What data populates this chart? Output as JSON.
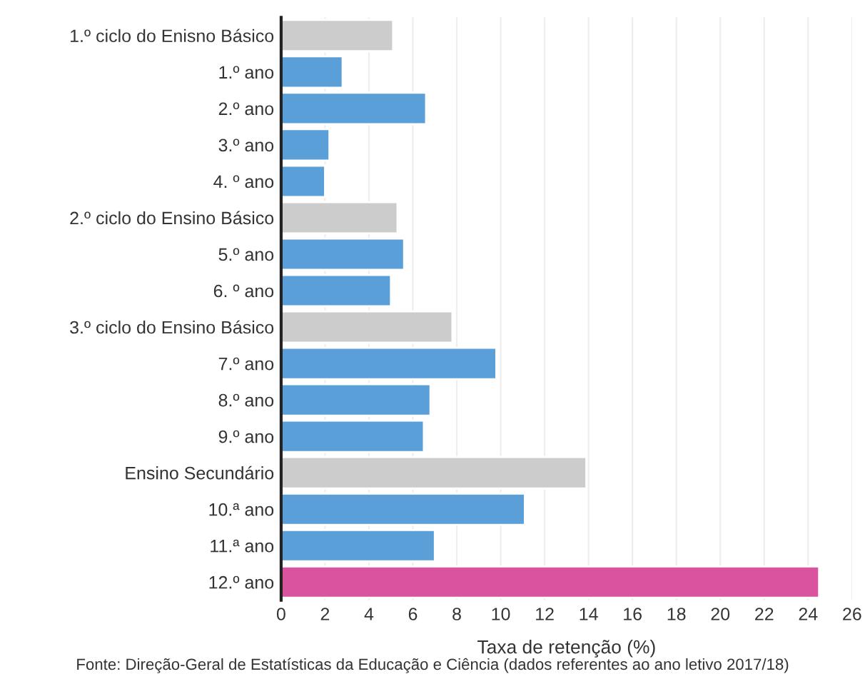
{
  "chart_data": {
    "type": "bar",
    "orientation": "horizontal",
    "categories": [
      "1.º ciclo do Enisno Básico",
      "1.º ano",
      "2.º ano",
      "3.º ano",
      "4. º ano",
      "2.º ciclo do Ensino Básico",
      "5.º ano",
      "6. º ano",
      "3.º ciclo do Ensino Básico",
      "7.º ano",
      "8.º ano",
      "9.º ano",
      "Ensino Secundário",
      "10.ª ano",
      "11.ª ano",
      "12.º ano"
    ],
    "values": [
      5.1,
      2.8,
      6.6,
      2.2,
      2.0,
      5.3,
      5.6,
      5.0,
      7.8,
      9.8,
      6.8,
      6.5,
      13.9,
      11.1,
      7.0,
      24.5
    ],
    "colors": [
      "#cccccc",
      "#5a9fd8",
      "#5a9fd8",
      "#5a9fd8",
      "#5a9fd8",
      "#cccccc",
      "#5a9fd8",
      "#5a9fd8",
      "#cccccc",
      "#5a9fd8",
      "#5a9fd8",
      "#5a9fd8",
      "#cccccc",
      "#5a9fd8",
      "#5a9fd8",
      "#d9539f"
    ],
    "xlim": [
      0,
      26
    ],
    "xticks": [
      0,
      2,
      4,
      6,
      8,
      10,
      12,
      14,
      16,
      18,
      20,
      22,
      24,
      26
    ],
    "xlabel": "Taxa de retenção (%)",
    "grid": "x",
    "annotations": [
      "Fonte: Direção-Geral de Estatísticas da Educação e Ciência (dados referentes ao ano letivo 2017/18)"
    ]
  }
}
